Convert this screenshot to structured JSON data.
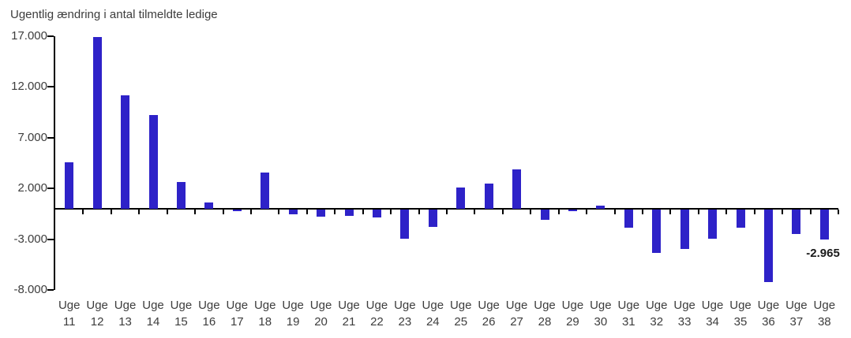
{
  "colors": {
    "bar": "#2E22C8",
    "axis": "#000000",
    "text": "#3d3d3d",
    "annotation_text": "#1a1a1a",
    "background": "#ffffff"
  },
  "chart_data": {
    "type": "bar",
    "title": "Ugentlig ændring i antal tilmeldte ledige",
    "category_prefix": "Uge",
    "weeks": [
      "11",
      "12",
      "13",
      "14",
      "15",
      "16",
      "17",
      "18",
      "19",
      "20",
      "21",
      "22",
      "23",
      "24",
      "25",
      "26",
      "27",
      "28",
      "29",
      "30",
      "31",
      "32",
      "33",
      "34",
      "35",
      "36",
      "37",
      "38"
    ],
    "values": [
      4600,
      16900,
      11200,
      9200,
      2600,
      600,
      -150,
      3600,
      -500,
      -700,
      -600,
      -800,
      -2850,
      -1700,
      2100,
      2450,
      3900,
      -1000,
      -150,
      300,
      -1800,
      -4300,
      -3850,
      -2900,
      -1800,
      -7150,
      -2400,
      -2965
    ],
    "y_ticks": [
      17000,
      12000,
      7000,
      2000,
      -3000,
      -8000
    ],
    "y_tick_labels": [
      "17.000",
      "12.000",
      "7.000",
      "2.000",
      "-3.000",
      "-8.000"
    ],
    "ylim": [
      -8000,
      17000
    ],
    "grid": false,
    "legend": "none",
    "annotation": {
      "text": "-2.965",
      "week": "38"
    }
  }
}
